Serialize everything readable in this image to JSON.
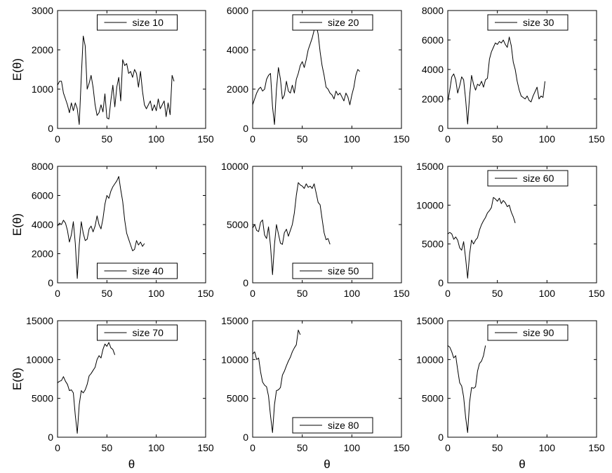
{
  "chart_data": [
    {
      "type": "line",
      "title": "",
      "xlabel": "",
      "ylabel": "E(θ)",
      "xlim": [
        0,
        150
      ],
      "ylim": [
        0,
        3000
      ],
      "xticks": [
        0,
        50,
        100,
        150
      ],
      "yticks": [
        0,
        1000,
        2000,
        3000
      ],
      "legend_position": "top-center",
      "series": [
        {
          "name": "size 10",
          "x": [
            0,
            2,
            4,
            6,
            8,
            10,
            12,
            14,
            16,
            18,
            20,
            22,
            24,
            26,
            28,
            30,
            32,
            34,
            36,
            38,
            40,
            42,
            44,
            46,
            48,
            50,
            52,
            54,
            56,
            58,
            60,
            62,
            64,
            66,
            68,
            70,
            72,
            74,
            76,
            78,
            80,
            82,
            84,
            86,
            88,
            90,
            92,
            94,
            96,
            98,
            100,
            102,
            104,
            106,
            108,
            110,
            112,
            114,
            116,
            118
          ],
          "y": [
            1100,
            1200,
            1200,
            900,
            750,
            600,
            400,
            650,
            450,
            650,
            500,
            100,
            1300,
            2350,
            2100,
            1000,
            1150,
            1350,
            1050,
            600,
            330,
            400,
            600,
            420,
            880,
            270,
            240,
            720,
            1100,
            550,
            1050,
            1300,
            700,
            1750,
            1600,
            1650,
            1400,
            1450,
            1300,
            1500,
            1400,
            1050,
            1450,
            950,
            600,
            500,
            600,
            700,
            450,
            600,
            450,
            750,
            500,
            600,
            700,
            300,
            650,
            350,
            1350,
            1200
          ]
        }
      ]
    },
    {
      "type": "line",
      "title": "",
      "xlabel": "",
      "ylabel": "",
      "xlim": [
        0,
        150
      ],
      "ylim": [
        0,
        6000
      ],
      "xticks": [
        0,
        50,
        100,
        150
      ],
      "yticks": [
        0,
        2000,
        4000,
        6000
      ],
      "legend_position": "top-center",
      "series": [
        {
          "name": "size 20",
          "x": [
            0,
            2,
            4,
            6,
            8,
            10,
            12,
            14,
            16,
            18,
            20,
            22,
            24,
            26,
            28,
            30,
            32,
            34,
            36,
            38,
            40,
            42,
            44,
            46,
            48,
            50,
            52,
            54,
            56,
            58,
            60,
            62,
            64,
            66,
            68,
            70,
            72,
            74,
            76,
            78,
            80,
            82,
            84,
            86,
            88,
            90,
            92,
            94,
            96,
            98,
            100,
            102,
            104,
            106,
            108
          ],
          "y": [
            1200,
            1500,
            1800,
            2000,
            2100,
            1900,
            2000,
            2500,
            2700,
            2800,
            1100,
            200,
            2000,
            3100,
            2500,
            1500,
            1700,
            2400,
            1900,
            1800,
            2200,
            1800,
            2500,
            2800,
            3200,
            3400,
            3100,
            3500,
            4000,
            4300,
            4600,
            5000,
            5300,
            4800,
            3900,
            3200,
            2700,
            2100,
            2000,
            1800,
            1700,
            1500,
            1900,
            1700,
            1800,
            1600,
            1400,
            1800,
            1600,
            1200,
            1700,
            2100,
            2700,
            3000,
            2900
          ]
        }
      ]
    },
    {
      "type": "line",
      "title": "",
      "xlabel": "",
      "ylabel": "",
      "xlim": [
        0,
        150
      ],
      "ylim": [
        0,
        8000
      ],
      "xticks": [
        0,
        50,
        100,
        150
      ],
      "yticks": [
        0,
        2000,
        4000,
        6000,
        8000
      ],
      "legend_position": "top-center",
      "series": [
        {
          "name": "size 30",
          "x": [
            0,
            2,
            4,
            6,
            8,
            10,
            12,
            14,
            16,
            18,
            20,
            22,
            24,
            26,
            28,
            30,
            32,
            34,
            36,
            38,
            40,
            42,
            44,
            46,
            48,
            50,
            52,
            54,
            56,
            58,
            60,
            62,
            64,
            66,
            68,
            70,
            72,
            74,
            76,
            78,
            80,
            82,
            84,
            86,
            88,
            90,
            92,
            94,
            96,
            98
          ],
          "y": [
            1800,
            2600,
            3500,
            3700,
            3300,
            2400,
            2900,
            3500,
            3300,
            2000,
            300,
            2200,
            3600,
            3000,
            2600,
            3000,
            2900,
            3200,
            2800,
            3300,
            3400,
            4700,
            5200,
            5500,
            5800,
            5700,
            5900,
            5800,
            6000,
            5700,
            5500,
            6200,
            5600,
            4500,
            4000,
            3200,
            2600,
            2200,
            2100,
            2000,
            2200,
            1900,
            1800,
            2200,
            2500,
            2800,
            2000,
            2200,
            2100,
            3200
          ]
        }
      ]
    },
    {
      "type": "line",
      "title": "",
      "xlabel": "",
      "ylabel": "E(θ)",
      "xlim": [
        0,
        150
      ],
      "ylim": [
        0,
        8000
      ],
      "xticks": [
        0,
        50,
        100,
        150
      ],
      "yticks": [
        0,
        2000,
        4000,
        6000,
        8000
      ],
      "legend_position": "bottom-center",
      "series": [
        {
          "name": "size 40",
          "x": [
            0,
            2,
            4,
            6,
            8,
            10,
            12,
            14,
            16,
            18,
            20,
            22,
            24,
            26,
            28,
            30,
            32,
            34,
            36,
            38,
            40,
            42,
            44,
            46,
            48,
            50,
            52,
            54,
            56,
            58,
            60,
            62,
            64,
            66,
            68,
            70,
            72,
            74,
            76,
            78,
            80,
            82,
            84,
            86,
            88
          ],
          "y": [
            3900,
            4100,
            4000,
            4300,
            4100,
            3600,
            2800,
            3300,
            4200,
            2700,
            300,
            2600,
            4200,
            3400,
            2900,
            3000,
            3700,
            3900,
            3500,
            3900,
            4600,
            4000,
            3700,
            4400,
            5400,
            6000,
            5800,
            6300,
            6600,
            6800,
            7000,
            7300,
            6400,
            5600,
            4300,
            3400,
            3000,
            2600,
            2200,
            2300,
            2900,
            2600,
            2800,
            2500,
            2700
          ]
        }
      ]
    },
    {
      "type": "line",
      "title": "",
      "xlabel": "",
      "ylabel": "",
      "xlim": [
        0,
        150
      ],
      "ylim": [
        0,
        10000
      ],
      "xticks": [
        0,
        50,
        100,
        150
      ],
      "yticks": [
        0,
        5000,
        10000
      ],
      "legend_position": "bottom-center",
      "series": [
        {
          "name": "size 50",
          "x": [
            0,
            2,
            4,
            6,
            8,
            10,
            12,
            14,
            16,
            18,
            20,
            22,
            24,
            26,
            28,
            30,
            32,
            34,
            36,
            38,
            40,
            42,
            44,
            46,
            48,
            50,
            52,
            54,
            56,
            58,
            60,
            62,
            64,
            66,
            68,
            70,
            72,
            74,
            76,
            78
          ],
          "y": [
            4700,
            5000,
            4500,
            4400,
            5200,
            5400,
            4100,
            3800,
            4800,
            3200,
            700,
            3300,
            5000,
            4200,
            3400,
            3300,
            4300,
            4600,
            4000,
            4500,
            5000,
            6000,
            7500,
            8600,
            8400,
            8300,
            8100,
            8500,
            8200,
            8300,
            8100,
            8500,
            7700,
            6900,
            6700,
            5500,
            4300,
            3700,
            3800,
            3300
          ]
        }
      ]
    },
    {
      "type": "line",
      "title": "",
      "xlabel": "",
      "ylabel": "",
      "xlim": [
        0,
        150
      ],
      "ylim": [
        0,
        15000
      ],
      "xticks": [
        0,
        50,
        100,
        150
      ],
      "yticks": [
        0,
        5000,
        10000,
        15000
      ],
      "legend_position": "top-center",
      "series": [
        {
          "name": "size 60",
          "x": [
            0,
            2,
            4,
            6,
            8,
            10,
            12,
            14,
            16,
            18,
            20,
            22,
            24,
            26,
            28,
            30,
            32,
            34,
            36,
            38,
            40,
            42,
            44,
            46,
            48,
            50,
            52,
            54,
            56,
            58,
            60,
            62,
            64,
            66,
            68
          ],
          "y": [
            6300,
            6500,
            6300,
            5600,
            5900,
            5500,
            4500,
            4200,
            5300,
            3200,
            600,
            3700,
            5500,
            5000,
            5500,
            5800,
            6800,
            7500,
            8000,
            8400,
            9000,
            9300,
            9700,
            11000,
            10800,
            10500,
            10900,
            10200,
            10600,
            10300,
            9800,
            10000,
            9100,
            8500,
            7700
          ]
        }
      ]
    },
    {
      "type": "line",
      "title": "",
      "xlabel": "θ",
      "ylabel": "E(θ)",
      "xlim": [
        0,
        150
      ],
      "ylim": [
        0,
        15000
      ],
      "xticks": [
        0,
        50,
        100,
        150
      ],
      "yticks": [
        0,
        5000,
        10000,
        15000
      ],
      "legend_position": "top-center",
      "series": [
        {
          "name": "size 70",
          "x": [
            0,
            2,
            4,
            6,
            8,
            10,
            12,
            14,
            16,
            18,
            20,
            22,
            24,
            26,
            28,
            30,
            32,
            34,
            36,
            38,
            40,
            42,
            44,
            46,
            48,
            50,
            52,
            54,
            56,
            58
          ],
          "y": [
            7000,
            7200,
            7300,
            7800,
            7200,
            6800,
            6000,
            6100,
            5700,
            2800,
            500,
            4200,
            6000,
            5700,
            6100,
            6800,
            7900,
            8200,
            8600,
            9000,
            10000,
            10500,
            10200,
            11300,
            12000,
            11700,
            12200,
            11500,
            11300,
            10600
          ]
        }
      ]
    },
    {
      "type": "line",
      "title": "",
      "xlabel": "θ",
      "ylabel": "",
      "xlim": [
        0,
        150
      ],
      "ylim": [
        0,
        15000
      ],
      "xticks": [
        0,
        50,
        100,
        150
      ],
      "yticks": [
        0,
        5000,
        10000,
        15000
      ],
      "legend_position": "bottom-center",
      "series": [
        {
          "name": "size 80",
          "x": [
            0,
            2,
            4,
            6,
            8,
            10,
            12,
            14,
            16,
            18,
            20,
            22,
            24,
            26,
            28,
            30,
            32,
            34,
            36,
            38,
            40,
            42,
            44,
            46,
            48
          ],
          "y": [
            10700,
            11000,
            10000,
            10200,
            8400,
            7100,
            6700,
            6500,
            5300,
            2800,
            600,
            4200,
            6000,
            6100,
            6400,
            8000,
            8500,
            9200,
            9800,
            10300,
            11000,
            11500,
            11900,
            13800,
            13200
          ]
        }
      ]
    },
    {
      "type": "line",
      "title": "",
      "xlabel": "θ",
      "ylabel": "",
      "xlim": [
        0,
        150
      ],
      "ylim": [
        0,
        15000
      ],
      "xticks": [
        0,
        50,
        100,
        150
      ],
      "yticks": [
        0,
        5000,
        10000,
        15000
      ],
      "legend_position": "top-center",
      "series": [
        {
          "name": "size 90",
          "x": [
            0,
            2,
            4,
            6,
            8,
            10,
            12,
            14,
            16,
            18,
            20,
            22,
            24,
            26,
            28,
            30,
            32,
            34,
            36,
            38
          ],
          "y": [
            11800,
            11600,
            11000,
            10200,
            10500,
            8700,
            7000,
            6600,
            5200,
            2600,
            600,
            4500,
            6400,
            6300,
            6500,
            8500,
            9500,
            9800,
            10500,
            11800
          ]
        }
      ]
    }
  ]
}
